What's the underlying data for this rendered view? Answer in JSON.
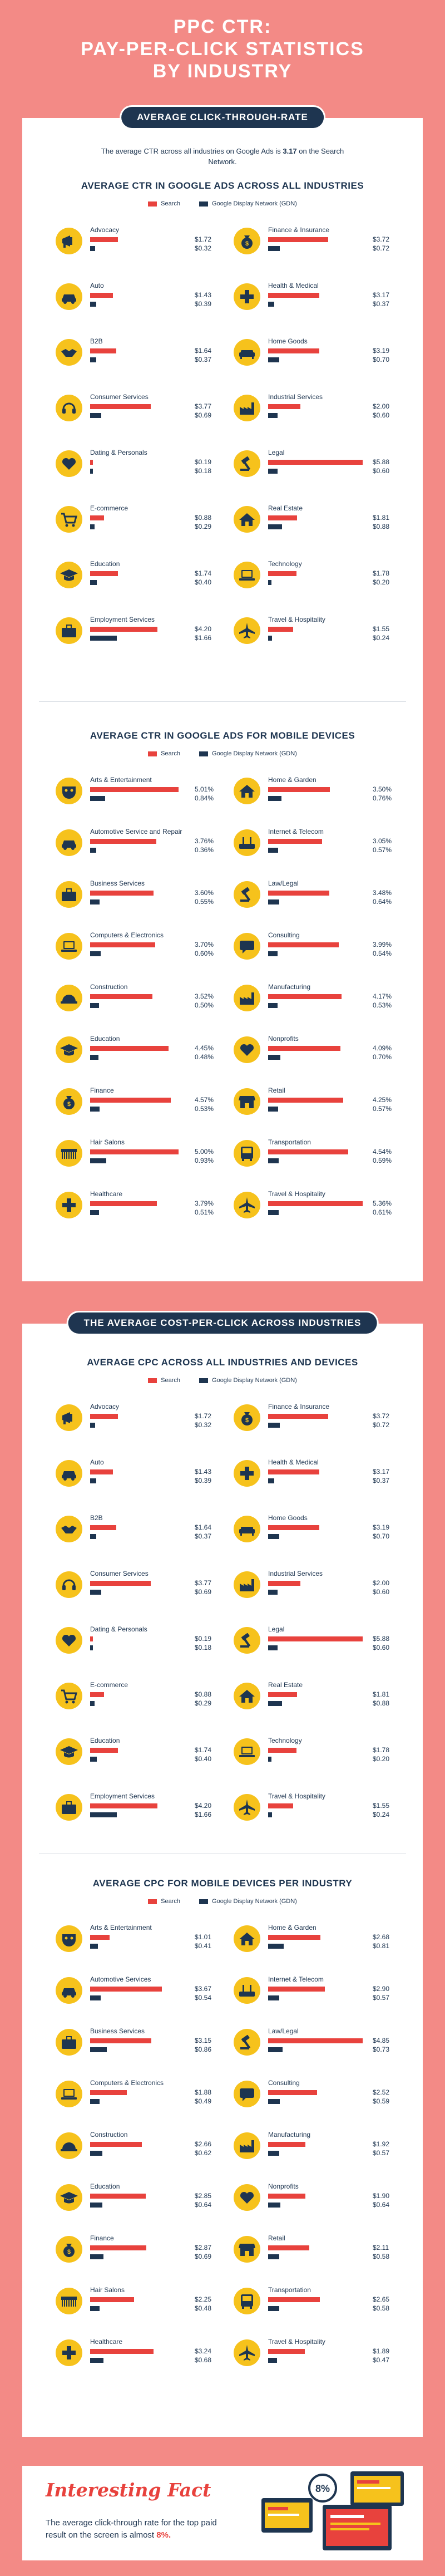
{
  "title": "PPC CTR:\nPAY-PER-CLICK STATISTICS\nBY INDUSTRY",
  "colors": {
    "search": "#e8423d",
    "display": "#1e3550",
    "icon_bg": "#f6c21c",
    "icon_fg": "#1e3550",
    "background": "#f38a86"
  },
  "legend": {
    "search": "Search",
    "display": "Google Display Network (GDN)"
  },
  "ctr_section": {
    "banner": "AVERAGE CLICK-THROUGH-RATE",
    "intro_prefix": "The average CTR across all industries on Google Ads is ",
    "intro_value": "3.17",
    "intro_suffix": " on the Search Network."
  },
  "cpc_section": {
    "banner": "THE AVERAGE COST-PER-CLICK ACROSS INDUSTRIES"
  },
  "fact": {
    "title": "Interesting Fact",
    "text_prefix": "The average click-through rate for the top paid result on the screen is almost ",
    "text_value": "8%.",
    "badge": "8%"
  },
  "chart_data": [
    {
      "type": "bar",
      "title": "AVERAGE CTR IN GOOGLE ADS ACROSS ALL INDUSTRIES",
      "categories": [
        "Advocacy",
        "Finance & Insurance",
        "Auto",
        "Health & Medical",
        "B2B",
        "Home Goods",
        "Consumer Services",
        "Industrial Services",
        "Dating & Personals",
        "Legal",
        "E-commerce",
        "Real Estate",
        "Education",
        "Technology",
        "Employment Services",
        "Travel & Hospitality"
      ],
      "icons": [
        "megaphone-icon",
        "moneybag-icon",
        "car-icon",
        "medical-cross-icon",
        "handshake-icon",
        "sofa-icon",
        "headset-icon",
        "factory-icon",
        "heart-icon",
        "gavel-icon",
        "cart-icon",
        "house-icon",
        "graduation-cap-icon",
        "laptop-icon",
        "briefcase-icon",
        "airplane-icon"
      ],
      "series": [
        {
          "name": "Search",
          "values": [
            1.72,
            3.72,
            1.43,
            3.17,
            1.64,
            3.19,
            3.77,
            2.0,
            0.19,
            5.88,
            0.88,
            1.81,
            1.74,
            1.78,
            4.2,
            1.55
          ],
          "labels": [
            "$1.72",
            "$3.72",
            "$1.43",
            "$3.17",
            "$1.64",
            "$3.19",
            "$3.77",
            "$2.00",
            "$0.19",
            "$5.88",
            "$0.88",
            "$1.81",
            "$1.74",
            "$1.78",
            "$4.20",
            "$1.55"
          ]
        },
        {
          "name": "Google Display Network (GDN)",
          "values": [
            0.32,
            0.72,
            0.39,
            0.37,
            0.37,
            0.7,
            0.69,
            0.6,
            0.18,
            0.6,
            0.29,
            0.88,
            0.4,
            0.2,
            1.66,
            0.24
          ],
          "labels": [
            "$0.32",
            "$0.72",
            "$0.39",
            "$0.37",
            "$0.37",
            "$0.70",
            "$0.69",
            "$0.60",
            "$0.18",
            "$0.60",
            "$0.29",
            "$0.88",
            "$0.40",
            "$0.20",
            "$1.66",
            "$0.24"
          ]
        }
      ]
    },
    {
      "type": "bar",
      "title": "AVERAGE CTR IN GOOGLE ADS FOR MOBILE DEVICES",
      "categories": [
        "Arts & Entertainment",
        "Home & Garden",
        "Automotive Service and Repair",
        "Internet & Telecom",
        "Business Services",
        "Law/Legal",
        "Computers & Electronics",
        "Consulting",
        "Construction",
        "Manufacturing",
        "Education",
        "Nonprofits",
        "Finance",
        "Retail",
        "Hair Salons",
        "Transportation",
        "Healthcare",
        "Travel & Hospitality"
      ],
      "icons": [
        "mask-icon",
        "house-icon",
        "car-icon",
        "router-icon",
        "briefcase-icon",
        "gavel-icon",
        "laptop-icon",
        "chat-icon",
        "helmet-icon",
        "factory-icon",
        "graduation-cap-icon",
        "heart-hand-icon",
        "moneybag-icon",
        "shop-icon",
        "comb-icon",
        "bus-icon",
        "medical-cross-icon",
        "airplane-icon"
      ],
      "series": [
        {
          "name": "Search",
          "values": [
            5.01,
            3.5,
            3.76,
            3.05,
            3.6,
            3.48,
            3.7,
            3.99,
            3.52,
            4.17,
            4.45,
            4.09,
            4.57,
            4.25,
            5.0,
            4.54,
            3.79,
            5.36
          ],
          "labels": [
            "5.01%",
            "3.50%",
            "3.76%",
            "3.05%",
            "3.60%",
            "3.48%",
            "3.70%",
            "3.99%",
            "3.52%",
            "4.17%",
            "4.45%",
            "4.09%",
            "4.57%",
            "4.25%",
            "5.00%",
            "4.54%",
            "3.79%",
            "5.36%"
          ]
        },
        {
          "name": "Google Display Network (GDN)",
          "values": [
            0.84,
            0.76,
            0.36,
            0.57,
            0.55,
            0.64,
            0.6,
            0.54,
            0.5,
            0.53,
            0.48,
            0.7,
            0.53,
            0.57,
            0.93,
            0.59,
            0.51,
            0.61
          ],
          "labels": [
            "0.84%",
            "0.76%",
            "0.36%",
            "0.57%",
            "0.55%",
            "0.64%",
            "0.60%",
            "0.54%",
            "0.50%",
            "0.53%",
            "0.48%",
            "0.70%",
            "0.53%",
            "0.57%",
            "0.93%",
            "0.59%",
            "0.51%",
            "0.61%"
          ]
        }
      ]
    },
    {
      "type": "bar",
      "title": "AVERAGE CPC ACROSS ALL INDUSTRIES AND DEVICES",
      "categories": [
        "Advocacy",
        "Finance & Insurance",
        "Auto",
        "Health & Medical",
        "B2B",
        "Home Goods",
        "Consumer Services",
        "Industrial Services",
        "Dating & Personals",
        "Legal",
        "E-commerce",
        "Real Estate",
        "Education",
        "Technology",
        "Employment Services",
        "Travel & Hospitality"
      ],
      "icons": [
        "megaphone-icon",
        "moneybag-icon",
        "car-icon",
        "medical-cross-icon",
        "handshake-icon",
        "sofa-icon",
        "headset-icon",
        "factory-icon",
        "heart-icon",
        "gavel-icon",
        "cart-icon",
        "house-icon",
        "graduation-cap-icon",
        "laptop-icon",
        "briefcase-icon",
        "airplane-icon"
      ],
      "series": [
        {
          "name": "Search",
          "values": [
            1.72,
            3.72,
            1.43,
            3.17,
            1.64,
            3.19,
            3.77,
            2.0,
            0.19,
            5.88,
            0.88,
            1.81,
            1.74,
            1.78,
            4.2,
            1.55
          ],
          "labels": [
            "$1.72",
            "$3.72",
            "$1.43",
            "$3.17",
            "$1.64",
            "$3.19",
            "$3.77",
            "$2.00",
            "$0.19",
            "$5.88",
            "$0.88",
            "$1.81",
            "$1.74",
            "$1.78",
            "$4.20",
            "$1.55"
          ]
        },
        {
          "name": "Google Display Network (GDN)",
          "values": [
            0.32,
            0.72,
            0.39,
            0.37,
            0.37,
            0.7,
            0.69,
            0.6,
            0.18,
            0.6,
            0.29,
            0.88,
            0.4,
            0.2,
            1.66,
            0.24
          ],
          "labels": [
            "$0.32",
            "$0.72",
            "$0.39",
            "$0.37",
            "$0.37",
            "$0.70",
            "$0.69",
            "$0.60",
            "$0.18",
            "$0.60",
            "$0.29",
            "$0.88",
            "$0.40",
            "$0.20",
            "$1.66",
            "$0.24"
          ]
        }
      ]
    },
    {
      "type": "bar",
      "title": "AVERAGE CPC FOR MOBILE DEVICES PER INDUSTRY",
      "categories": [
        "Arts & Entertainment",
        "Home & Garden",
        "Automotive Services",
        "Internet & Telecom",
        "Business Services",
        "Law/Legal",
        "Computers & Electronics",
        "Consulting",
        "Construction",
        "Manufacturing",
        "Education",
        "Nonprofits",
        "Finance",
        "Retail",
        "Hair Salons",
        "Transportation",
        "Healthcare",
        "Travel & Hospitality"
      ],
      "icons": [
        "mask-icon",
        "house-icon",
        "car-icon",
        "router-icon",
        "briefcase-icon",
        "gavel-icon",
        "laptop-icon",
        "chat-icon",
        "helmet-icon",
        "factory-icon",
        "graduation-cap-icon",
        "heart-hand-icon",
        "moneybag-icon",
        "shop-icon",
        "comb-icon",
        "bus-icon",
        "medical-cross-icon",
        "airplane-icon"
      ],
      "series": [
        {
          "name": "Search",
          "values": [
            1.01,
            2.68,
            3.67,
            2.9,
            3.15,
            4.85,
            1.88,
            2.52,
            2.66,
            1.92,
            2.85,
            1.9,
            2.87,
            2.11,
            2.25,
            2.65,
            3.24,
            1.89
          ],
          "labels": [
            "$1.01",
            "$2.68",
            "$3.67",
            "$2.90",
            "$3.15",
            "$4.85",
            "$1.88",
            "$2.52",
            "$2.66",
            "$1.92",
            "$2.85",
            "$1.90",
            "$2.87",
            "$2.11",
            "$2.25",
            "$2.65",
            "$3.24",
            "$1.89"
          ]
        },
        {
          "name": "Google Display Network (GDN)",
          "values": [
            0.41,
            0.81,
            0.54,
            0.57,
            0.86,
            0.73,
            0.49,
            0.59,
            0.62,
            0.57,
            0.64,
            0.64,
            0.69,
            0.58,
            0.48,
            0.58,
            0.68,
            0.47
          ],
          "labels": [
            "$0.41",
            "$0.81",
            "$0.54",
            "$0.57",
            "$0.86",
            "$0.73",
            "$0.49",
            "$0.59",
            "$0.62",
            "$0.57",
            "$0.64",
            "$0.64",
            "$0.69",
            "$0.58",
            "$0.48",
            "$0.58",
            "$0.68",
            "$0.47"
          ]
        }
      ]
    }
  ]
}
